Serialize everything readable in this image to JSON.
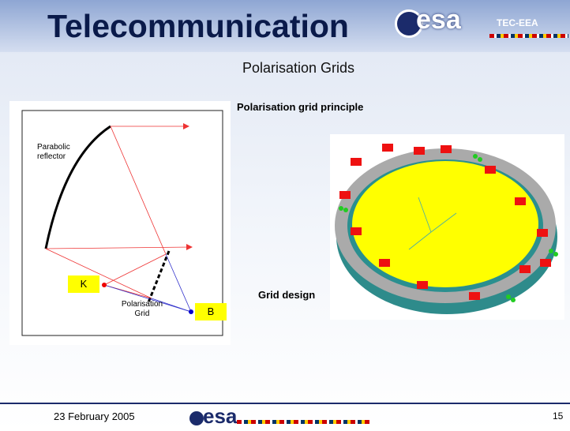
{
  "header": {
    "title": "Telecommunication",
    "logo": "esa",
    "division": "TEC-EEA"
  },
  "slide": {
    "subtitle": "Polarisation Grids"
  },
  "principle": {
    "heading": "Polarisation grid principle",
    "labels": {
      "reflector": "Parabolic reflector",
      "k": "K",
      "grid": "Polarisation Grid",
      "b": "B"
    }
  },
  "design": {
    "heading": "Grid design"
  },
  "footer": {
    "date": "23 February 2005",
    "logo": "esa",
    "page": "15"
  }
}
